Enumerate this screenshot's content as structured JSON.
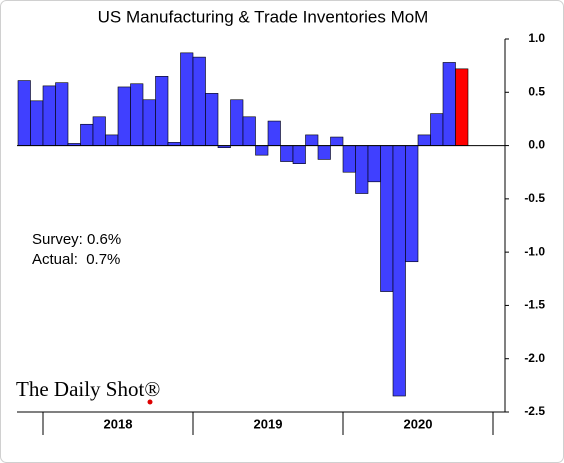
{
  "chart_data": {
    "type": "bar",
    "title": "US Manufacturing & Trade Inventories MoM",
    "categories": [
      null,
      null,
      null,
      null,
      null,
      null,
      null,
      null,
      null,
      null,
      null,
      null,
      null,
      null,
      null,
      null,
      null,
      null,
      null,
      null,
      null,
      null,
      null,
      null,
      null,
      null,
      null,
      null,
      null,
      null,
      null,
      null,
      null,
      null,
      null,
      null
    ],
    "year_labels": [
      "2018",
      "2019",
      "2020"
    ],
    "values": [
      0.61,
      0.42,
      0.56,
      0.59,
      0.02,
      0.2,
      0.27,
      0.1,
      0.55,
      0.58,
      0.43,
      0.65,
      0.03,
      0.87,
      0.83,
      0.49,
      -0.02,
      0.43,
      0.27,
      -0.09,
      0.23,
      -0.15,
      -0.17,
      0.1,
      -0.13,
      0.08,
      -0.25,
      -0.45,
      -0.34,
      -1.37,
      -2.35,
      -1.09,
      0.1,
      0.3,
      0.78,
      0.72
    ],
    "colors": [
      "#4040ff",
      "#4040ff",
      "#4040ff",
      "#4040ff",
      "#4040ff",
      "#4040ff",
      "#4040ff",
      "#4040ff",
      "#4040ff",
      "#4040ff",
      "#4040ff",
      "#4040ff",
      "#4040ff",
      "#4040ff",
      "#4040ff",
      "#4040ff",
      "#4040ff",
      "#4040ff",
      "#4040ff",
      "#4040ff",
      "#4040ff",
      "#4040ff",
      "#4040ff",
      "#4040ff",
      "#4040ff",
      "#4040ff",
      "#4040ff",
      "#4040ff",
      "#4040ff",
      "#4040ff",
      "#4040ff",
      "#4040ff",
      "#4040ff",
      "#4040ff",
      "#4040ff",
      "#ff0000"
    ],
    "ylim": [
      -2.5,
      1
    ],
    "yticks": [
      {
        "value": 1,
        "label": "1.0"
      },
      {
        "value": 0.5,
        "label": "0.5"
      },
      {
        "value": 0,
        "label": "0.0"
      },
      {
        "value": -0.5,
        "label": "-0.5"
      },
      {
        "value": -1,
        "label": "-1.0"
      },
      {
        "value": -1.5,
        "label": "-1.5"
      },
      {
        "value": -2,
        "label": "-2.0"
      },
      {
        "value": -2.5,
        "label": "-2.5"
      }
    ],
    "annotations": [
      "Survey: 0.6%",
      "Actual:  0.7%"
    ],
    "source": "The Daily Shot®"
  }
}
